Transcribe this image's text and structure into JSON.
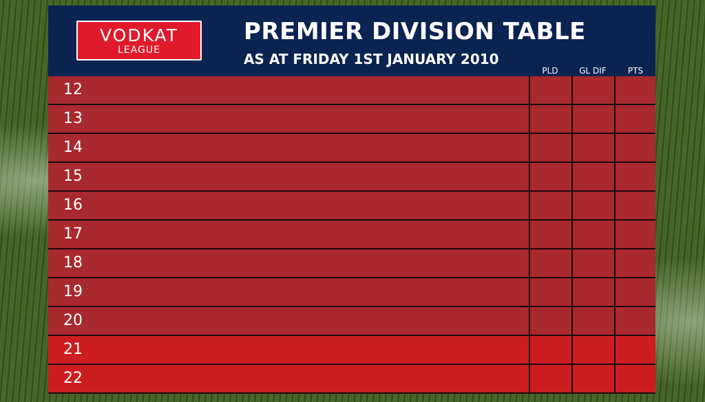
{
  "logo": {
    "line1": "VODKAT",
    "line2": "LEAGUE"
  },
  "header": {
    "title": "PREMIER DIVISION TABLE",
    "subtitle": "AS AT FRIDAY 1ST JANUARY 2010"
  },
  "table": {
    "columns": [
      "PLD",
      "GL DIF",
      "PTS"
    ],
    "rows": [
      {
        "position": 12
      },
      {
        "position": 13
      },
      {
        "position": 14
      },
      {
        "position": 15
      },
      {
        "position": 16
      },
      {
        "position": 17
      },
      {
        "position": 18
      },
      {
        "position": 19
      },
      {
        "position": 20
      },
      {
        "position": 21
      },
      {
        "position": 22
      }
    ]
  }
}
